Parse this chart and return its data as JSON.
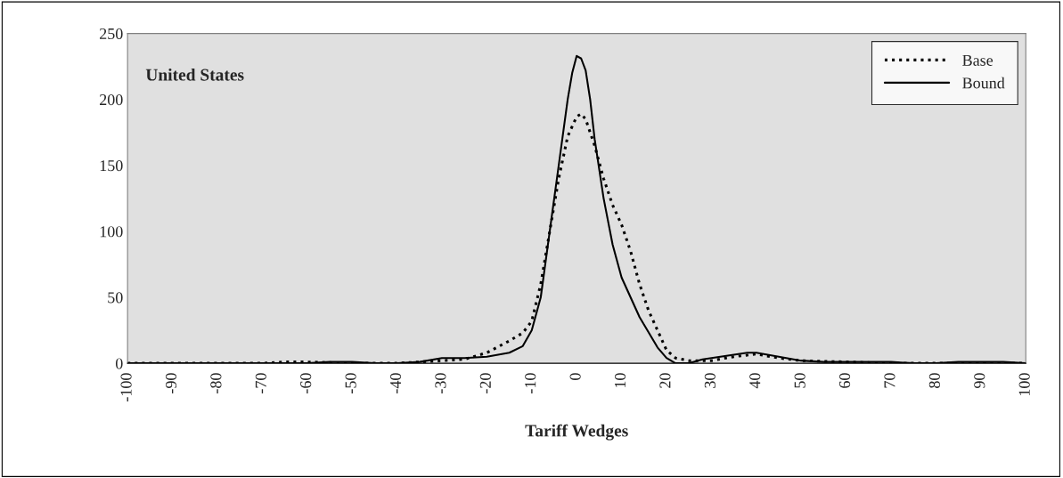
{
  "chart_data": {
    "type": "line",
    "xlabel": "Tariff Wedges",
    "annotations": [
      "United States"
    ],
    "xlim": [
      -100,
      100
    ],
    "xticks": [
      -100,
      -90,
      -80,
      -70,
      -60,
      -50,
      -40,
      -30,
      -20,
      -10,
      0,
      10,
      20,
      30,
      40,
      50,
      60,
      70,
      80,
      90,
      100
    ],
    "ylim": [
      0,
      250
    ],
    "yticks": [
      0,
      50,
      100,
      150,
      200,
      250
    ],
    "grid": false,
    "legend": "top right",
    "marker": "none",
    "series": [
      {
        "name": "Base",
        "color": "#000000",
        "line_style": "dotted",
        "x": [
          -100,
          -90,
          -80,
          -70,
          -65,
          -60,
          -50,
          -40,
          -35,
          -30,
          -25,
          -20,
          -15,
          -12,
          -10,
          -8,
          -6,
          -4,
          -2,
          0,
          1,
          2,
          4,
          6,
          8,
          10,
          12,
          14,
          16,
          18,
          20,
          22,
          25,
          30,
          35,
          40,
          45,
          50,
          60,
          70,
          80,
          90,
          100
        ],
        "values": [
          0,
          0,
          0,
          0,
          1,
          1,
          0,
          0,
          1,
          2,
          3,
          8,
          17,
          23,
          32,
          60,
          100,
          140,
          172,
          187,
          189,
          185,
          165,
          140,
          120,
          105,
          85,
          60,
          40,
          25,
          10,
          4,
          2,
          2,
          5,
          7,
          4,
          2,
          1,
          0,
          0,
          0,
          0
        ]
      },
      {
        "name": "Bound",
        "color": "#000000",
        "line_style": "solid",
        "x": [
          -100,
          -90,
          -80,
          -70,
          -60,
          -55,
          -50,
          -45,
          -40,
          -35,
          -30,
          -25,
          -20,
          -15,
          -12,
          -10,
          -8,
          -6,
          -4,
          -2,
          -1,
          0,
          1,
          2,
          3,
          4,
          6,
          8,
          10,
          14,
          18,
          20,
          22,
          25,
          28,
          38,
          40,
          50,
          55,
          70,
          75,
          80,
          85,
          95,
          100
        ],
        "values": [
          0,
          0,
          0,
          0,
          0,
          1,
          1,
          0,
          0,
          1,
          4,
          4,
          5,
          8,
          13,
          25,
          50,
          100,
          150,
          200,
          220,
          233,
          231,
          222,
          200,
          170,
          125,
          90,
          65,
          35,
          12,
          4,
          0,
          0,
          3,
          8,
          8,
          2,
          1,
          1,
          0,
          0,
          1,
          1,
          0
        ]
      }
    ]
  }
}
